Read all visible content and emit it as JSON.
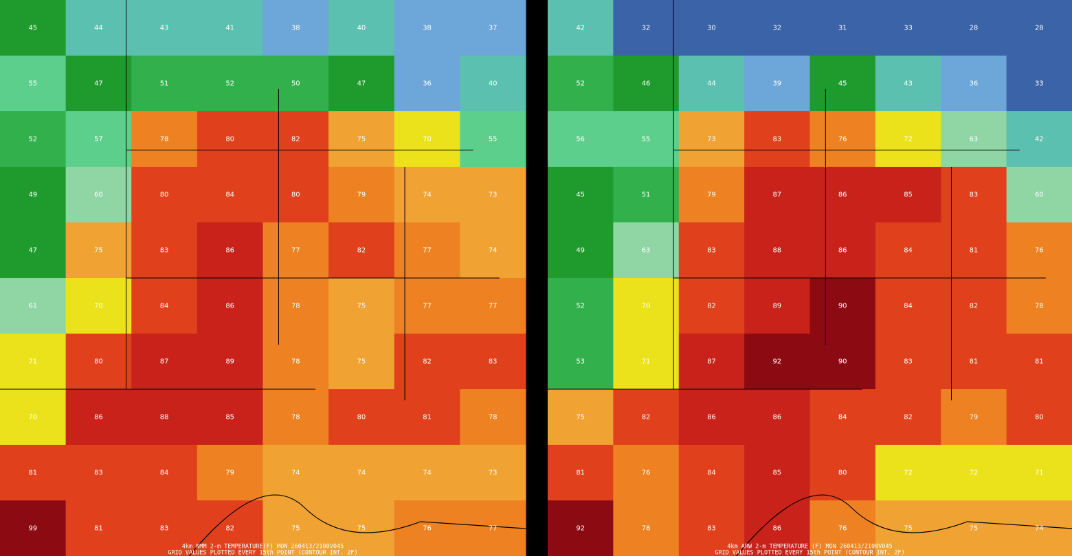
{
  "panels": [
    {
      "caption": "4km NMM 2-m TEMPERATURE(F) MON 260413/2100V045",
      "note": "GRID VALUES PLOTTED EVERY 15th POINT (CONTOUR INT. 2F)",
      "grid": [
        [
          45,
          44,
          43,
          41,
          38,
          40,
          38,
          37
        ],
        [
          55,
          47,
          51,
          52,
          50,
          47,
          36,
          40
        ],
        [
          52,
          57,
          78,
          80,
          82,
          75,
          70,
          55
        ],
        [
          49,
          60,
          80,
          84,
          80,
          79,
          74,
          73
        ],
        [
          47,
          75,
          83,
          86,
          77,
          82,
          77,
          74
        ],
        [
          61,
          70,
          84,
          86,
          78,
          75,
          77,
          77
        ],
        [
          71,
          80,
          87,
          89,
          78,
          75,
          82,
          83
        ],
        [
          70,
          86,
          88,
          85,
          78,
          80,
          81,
          78
        ],
        [
          81,
          83,
          84,
          79,
          74,
          74,
          74,
          73
        ],
        [
          99,
          81,
          83,
          82,
          75,
          75,
          76,
          77
        ]
      ]
    },
    {
      "caption": "4km ARW 2-m TEMPERATURE (F) MON 260413/2100V045",
      "note": "GRID VALUES PLOTTED EVERY 15th POINT (CONTOUR INT. 2F)",
      "grid": [
        [
          42,
          32,
          30,
          32,
          31,
          33,
          28,
          28
        ],
        [
          52,
          46,
          44,
          39,
          45,
          43,
          36,
          33
        ],
        [
          56,
          55,
          73,
          83,
          76,
          72,
          63,
          42
        ],
        [
          45,
          51,
          79,
          87,
          86,
          85,
          83,
          60
        ],
        [
          49,
          63,
          83,
          88,
          86,
          84,
          81,
          76
        ],
        [
          52,
          70,
          82,
          89,
          90,
          84,
          82,
          78
        ],
        [
          53,
          71,
          87,
          92,
          90,
          83,
          81,
          81
        ],
        [
          75,
          82,
          86,
          86,
          84,
          82,
          79,
          80
        ],
        [
          81,
          76,
          84,
          85,
          80,
          72,
          72,
          71
        ],
        [
          92,
          78,
          83,
          86,
          76,
          75,
          75,
          74
        ]
      ]
    }
  ]
}
